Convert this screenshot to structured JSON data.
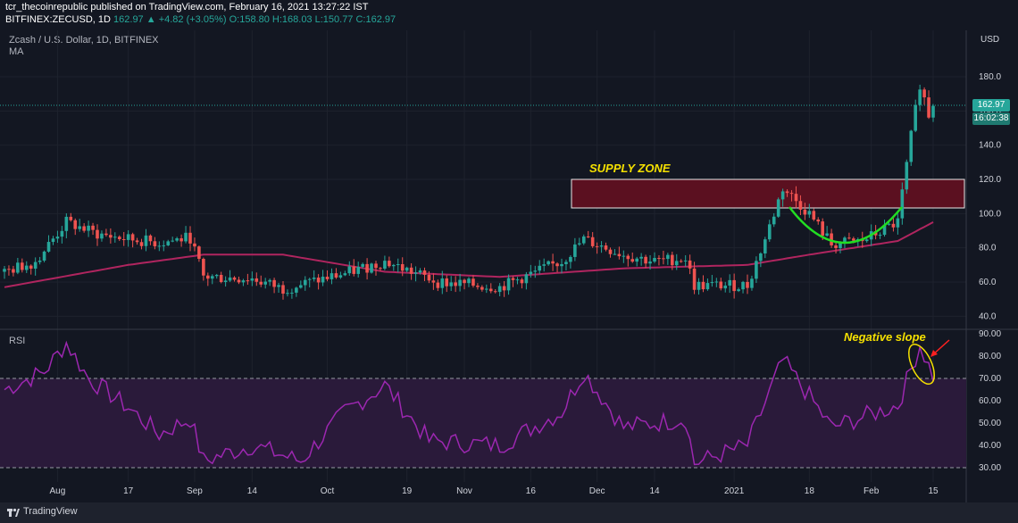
{
  "header": {
    "line1": "tcr_thecoinrepublic published on TradingView.com, February 16, 2021 13:27:22 IST",
    "symbol": "BITFINEX:ZECUSD, 1D",
    "last": "162.97",
    "change": "▲ +4.82 (+3.05%)",
    "ohlc": "O:158.80 H:168.03 L:150.77 C:162.97"
  },
  "chart_title": "Zcash / U.S. Dollar, 1D, BITFINEX",
  "ma_label": "MA",
  "rsi_label": "RSI",
  "currency_label": "USD",
  "current_price": "162.97",
  "countdown": "16:02:38",
  "annotations": {
    "supply_zone": "SUPPLY ZONE",
    "negative_slope": "Negative slope"
  },
  "footer": {
    "brand": "TradingView"
  },
  "colors": {
    "up": "#26a69a",
    "down": "#ef5350",
    "ma": "#b0255f",
    "rsi": "#9c27b0",
    "zone": "#5b1020",
    "curve": "#22dd22",
    "circle": "#f5e000",
    "arrow": "#ff2020"
  },
  "chart_data": [
    {
      "type": "candlestick",
      "title": "Zcash / U.S. Dollar, 1D, BITFINEX",
      "ylabel": "USD",
      "yticks": [
        40,
        60,
        80,
        100,
        120,
        140,
        160,
        180
      ],
      "ylim": [
        35,
        208
      ],
      "xticks": [
        "Aug",
        "17",
        "Sep",
        "14",
        "Oct",
        "19",
        "Nov",
        "16",
        "Dec",
        "14",
        "2021",
        "18",
        "Feb",
        "15"
      ],
      "grid": true,
      "series": [
        {
          "name": "ZECUSD",
          "type": "candlestick",
          "keypoints": [
            {
              "date": "2020-07-20",
              "close": 66
            },
            {
              "date": "2020-07-27",
              "close": 72
            },
            {
              "date": "2020-08-03",
              "close": 95
            },
            {
              "date": "2020-08-10",
              "close": 88
            },
            {
              "date": "2020-08-17",
              "close": 85
            },
            {
              "date": "2020-08-24",
              "close": 83
            },
            {
              "date": "2020-08-31",
              "close": 86
            },
            {
              "date": "2020-09-03",
              "close": 63
            },
            {
              "date": "2020-09-14",
              "close": 62
            },
            {
              "date": "2020-09-21",
              "close": 56
            },
            {
              "date": "2020-10-05",
              "close": 65
            },
            {
              "date": "2020-10-14",
              "close": 72
            },
            {
              "date": "2020-10-26",
              "close": 60
            },
            {
              "date": "2020-11-09",
              "close": 57
            },
            {
              "date": "2020-11-23",
              "close": 72
            },
            {
              "date": "2020-11-28",
              "close": 85
            },
            {
              "date": "2020-12-07",
              "close": 76
            },
            {
              "date": "2020-12-14",
              "close": 72
            },
            {
              "date": "2020-12-21",
              "close": 74
            },
            {
              "date": "2020-12-23",
              "close": 58
            },
            {
              "date": "2021-01-04",
              "close": 58
            },
            {
              "date": "2021-01-08",
              "close": 85
            },
            {
              "date": "2021-01-12",
              "close": 115
            },
            {
              "date": "2021-01-18",
              "close": 100
            },
            {
              "date": "2021-01-23",
              "close": 82
            },
            {
              "date": "2021-01-30",
              "close": 84
            },
            {
              "date": "2021-02-07",
              "close": 95
            },
            {
              "date": "2021-02-10",
              "close": 145
            },
            {
              "date": "2021-02-12",
              "close": 176
            },
            {
              "date": "2021-02-14",
              "close": 158
            },
            {
              "date": "2021-02-15",
              "close": 162.97
            }
          ]
        },
        {
          "name": "MA",
          "type": "line",
          "keypoints": [
            {
              "date": "2020-07-20",
              "value": 57
            },
            {
              "date": "2020-08-17",
              "value": 70
            },
            {
              "date": "2020-09-03",
              "value": 76
            },
            {
              "date": "2020-09-21",
              "value": 76
            },
            {
              "date": "2020-10-14",
              "value": 66
            },
            {
              "date": "2020-11-09",
              "value": 63
            },
            {
              "date": "2020-12-07",
              "value": 68
            },
            {
              "date": "2021-01-04",
              "value": 70
            },
            {
              "date": "2021-01-18",
              "value": 76
            },
            {
              "date": "2021-02-07",
              "value": 84
            },
            {
              "date": "2021-02-15",
              "value": 95
            }
          ]
        }
      ],
      "annotations": [
        {
          "text": "SUPPLY ZONE",
          "type": "rectangle",
          "from_price": 103,
          "to_price": 119,
          "from_date": "2020-12-01",
          "to_date": "2021-02-15"
        }
      ]
    },
    {
      "type": "line",
      "title": "RSI",
      "yticks": [
        30,
        40,
        50,
        60,
        70,
        80,
        90
      ],
      "ylim": [
        28,
        90
      ],
      "bands": [
        30,
        70
      ],
      "series": [
        {
          "name": "RSI",
          "keypoints": [
            {
              "date": "2020-07-20",
              "value": 65
            },
            {
              "date": "2020-07-29",
              "value": 73
            },
            {
              "date": "2020-08-03",
              "value": 86
            },
            {
              "date": "2020-08-08",
              "value": 70
            },
            {
              "date": "2020-08-17",
              "value": 57
            },
            {
              "date": "2020-08-24",
              "value": 45
            },
            {
              "date": "2020-08-31",
              "value": 52
            },
            {
              "date": "2020-09-03",
              "value": 33
            },
            {
              "date": "2020-09-14",
              "value": 40
            },
            {
              "date": "2020-09-25",
              "value": 33
            },
            {
              "date": "2020-10-05",
              "value": 55
            },
            {
              "date": "2020-10-14",
              "value": 67
            },
            {
              "date": "2020-10-24",
              "value": 42
            },
            {
              "date": "2020-11-09",
              "value": 40
            },
            {
              "date": "2020-11-23",
              "value": 55
            },
            {
              "date": "2020-11-28",
              "value": 73
            },
            {
              "date": "2020-12-07",
              "value": 48
            },
            {
              "date": "2020-12-21",
              "value": 52
            },
            {
              "date": "2020-12-23",
              "value": 32
            },
            {
              "date": "2021-01-04",
              "value": 40
            },
            {
              "date": "2021-01-12",
              "value": 78
            },
            {
              "date": "2021-01-18",
              "value": 62
            },
            {
              "date": "2021-01-23",
              "value": 48
            },
            {
              "date": "2021-02-07",
              "value": 58
            },
            {
              "date": "2021-02-12",
              "value": 85
            },
            {
              "date": "2021-02-15",
              "value": 71
            }
          ]
        }
      ],
      "annotations": [
        {
          "text": "Negative slope"
        }
      ]
    }
  ]
}
